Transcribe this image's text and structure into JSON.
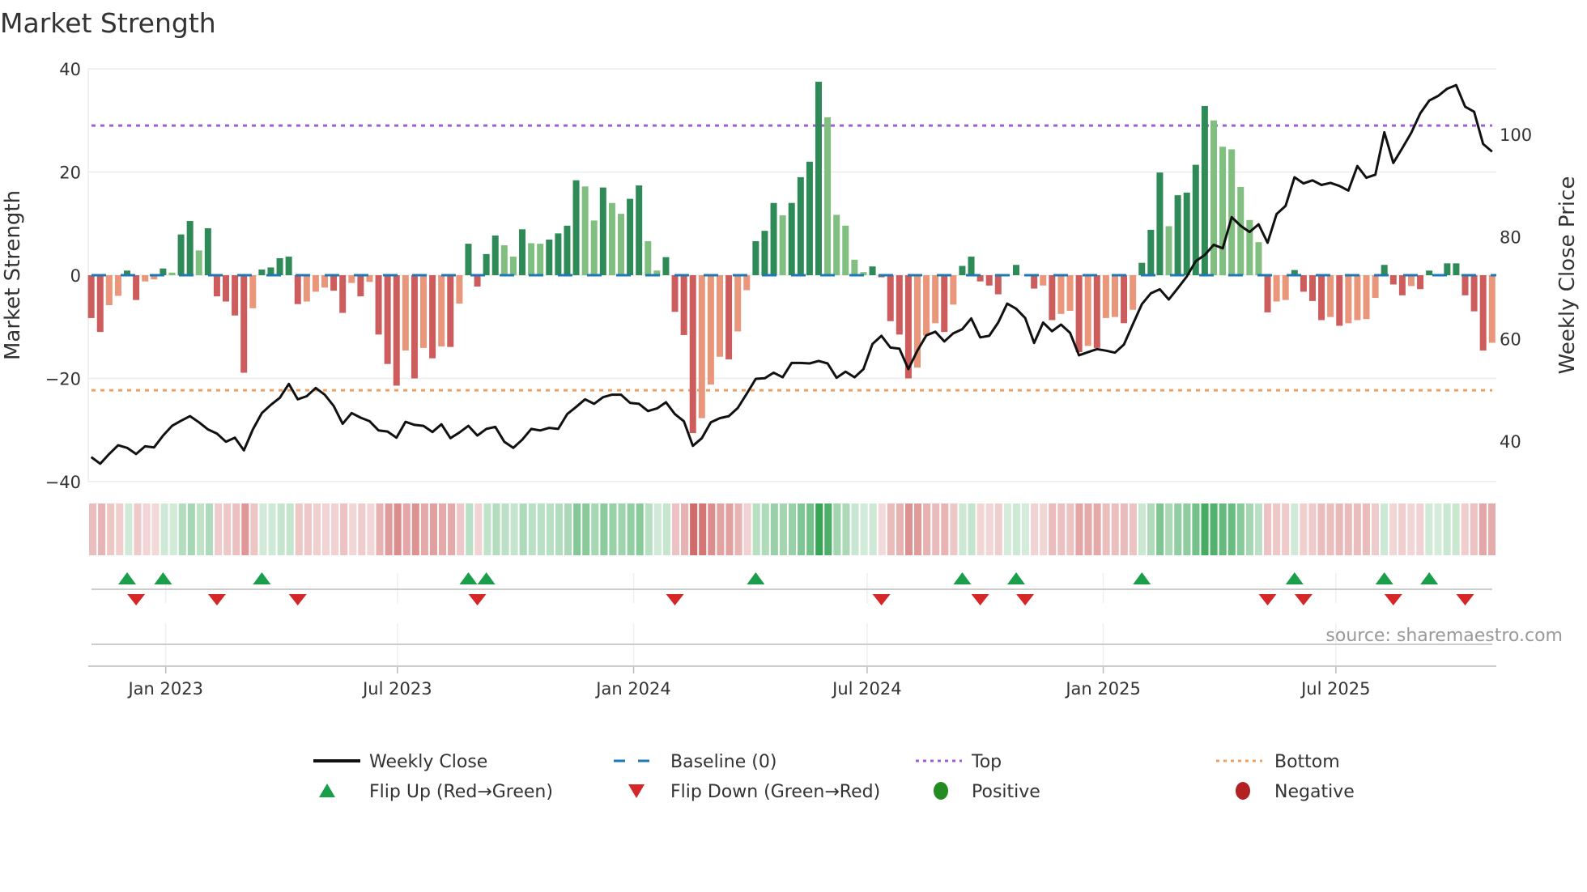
{
  "title": "Market Strength",
  "source_note": "source: sharemaestro.com",
  "colors": {
    "strong_green": "#2e8b57",
    "weak_green": "#80bf80",
    "strong_red": "#cd5c5c",
    "weak_red": "#e9967a",
    "baseline": "#1f77b4",
    "top": "#9c5fd6",
    "bottom": "#f0a060",
    "price": "#111111",
    "flip_up": "#1a9e4a",
    "flip_down": "#d62728",
    "positive": "#228b22",
    "negative": "#b22222",
    "strip_green": "#2ca04c",
    "strip_red": "#c84f4f"
  },
  "legend": {
    "weekly_close": "Weekly Close",
    "baseline": "Baseline (0)",
    "top": "Top",
    "bottom": "Bottom",
    "flip_up": "Flip Up (Red→Green)",
    "flip_down": "Flip Down (Green→Red)",
    "positive": "Positive",
    "negative": "Negative"
  },
  "chart_data": {
    "type": "bar",
    "title": "Market Strength",
    "ylabel": "Market Strength",
    "y2label": "Weekly Close Price",
    "xlabel": "",
    "ylim": [
      -40,
      40
    ],
    "y2lim": [
      32.1,
      112.8
    ],
    "x_range": [
      -0.33,
      156.47
    ],
    "grid": true,
    "legend_position": "bottom",
    "y_ticks": [
      {
        "v": 40,
        "label": "40"
      },
      {
        "v": 20,
        "label": "20"
      },
      {
        "v": 0,
        "label": "0"
      },
      {
        "v": -20,
        "label": "−20"
      },
      {
        "v": -40,
        "label": "−40"
      }
    ],
    "y2_ticks": [
      {
        "v": 100,
        "label": "100"
      },
      {
        "v": 80,
        "label": "80"
      },
      {
        "v": 60,
        "label": "60"
      },
      {
        "v": 40,
        "label": "40"
      }
    ],
    "x_ticks": [
      {
        "week": 8.3,
        "label": "Jan 2023"
      },
      {
        "week": 34.1,
        "label": "Jul 2023"
      },
      {
        "week": 60.4,
        "label": "Jan 2024"
      },
      {
        "week": 86.4,
        "label": "Jul 2024"
      },
      {
        "week": 112.7,
        "label": "Jan 2025"
      },
      {
        "week": 138.6,
        "label": "Jul 2025"
      }
    ],
    "top_level": 29.0,
    "bottom_level": -22.3,
    "baseline_level": 0,
    "strength": [
      -8.3,
      -11,
      -5.8,
      -4,
      0.9,
      -4.8,
      -1.2,
      -0.8,
      1.3,
      0.5,
      7.9,
      10.5,
      4.8,
      9.1,
      -4.1,
      -5.1,
      -7.8,
      -18.9,
      -6.4,
      1.1,
      1.5,
      3.3,
      3.6,
      -5.6,
      -5.1,
      -3.2,
      -2.4,
      -3,
      -7.3,
      -1.5,
      -4.1,
      -1.3,
      -11.5,
      -17.2,
      -21.4,
      -14.6,
      -20,
      -14.1,
      -16.1,
      -13.8,
      -13.9,
      -5.5,
      6.1,
      -2.2,
      4.1,
      7.7,
      5.8,
      3.6,
      8.9,
      6.2,
      6.1,
      6.9,
      8.1,
      9.6,
      18.4,
      17.2,
      10.6,
      17,
      14,
      11.9,
      14.8,
      17.4,
      6.6,
      0.9,
      3.5,
      -7.1,
      -11.6,
      -30.6,
      -27.7,
      -21.2,
      -15.8,
      -16.3,
      -10.9,
      -2.9,
      6.6,
      8.6,
      14,
      11.6,
      14,
      19,
      22,
      37.5,
      30.6,
      11.7,
      9.6,
      3,
      0.6,
      1.7,
      -0.4,
      -8.9,
      -11.5,
      -20,
      -17.9,
      -11.7,
      -9.3,
      -11,
      -5.7,
      1.8,
      3.6,
      -1.2,
      -2,
      -3.7,
      0,
      2,
      0,
      -2.6,
      -2,
      -8.7,
      -7.5,
      -6.9,
      -14.9,
      -13.7,
      -14.1,
      -8.3,
      -8.1,
      -9.3,
      -6.7,
      2.4,
      8.8,
      19.9,
      9.5,
      15.5,
      16,
      21.4,
      32.8,
      30,
      24.9,
      24.4,
      17.1,
      10.7,
      6.4,
      -7.2,
      -5.1,
      -4.8,
      1,
      -3.2,
      -5,
      -8.7,
      -8.1,
      -9.8,
      -9.3,
      -8.7,
      -8.5,
      -4.4,
      2,
      -1.8,
      -3.9,
      -2.1,
      -2.7,
      0.9,
      0,
      2.3,
      2.3,
      -3.9,
      -7,
      -14.6,
      -13.1
    ],
    "weekly_close": [
      36.9,
      35.6,
      37.5,
      39.2,
      38.7,
      37.5,
      39.0,
      38.8,
      41.1,
      43.0,
      44.0,
      44.9,
      43.7,
      42.3,
      41.5,
      39.9,
      40.7,
      38.2,
      42.3,
      45.5,
      47.1,
      48.5,
      51.2,
      48.2,
      48.8,
      50.4,
      49.1,
      46.9,
      43.4,
      45.5,
      44.6,
      43.9,
      42.1,
      41.9,
      40.7,
      43.8,
      43.2,
      43.0,
      41.8,
      43.3,
      40.6,
      41.7,
      43.0,
      41.1,
      42.4,
      42.8,
      39.9,
      38.7,
      40.3,
      42.4,
      42.1,
      42.6,
      42.4,
      45.3,
      46.7,
      48.2,
      47.3,
      48.6,
      49.1,
      49.1,
      47.5,
      47.3,
      45.9,
      46.4,
      47.6,
      45.3,
      43.9,
      39.1,
      40.6,
      43.7,
      44.5,
      44.9,
      46.5,
      49.3,
      52.2,
      52.3,
      53.4,
      52.5,
      55.3,
      55.3,
      55.2,
      55.7,
      55.2,
      52.4,
      53.6,
      52.5,
      54.1,
      59.0,
      60.6,
      58.3,
      58.1,
      54.1,
      57.7,
      60.7,
      61.4,
      59.5,
      61.1,
      61.9,
      64.0,
      60.3,
      60.6,
      63.2,
      66.9,
      65.9,
      64.1,
      59.2,
      63.2,
      61.5,
      62.8,
      61.2,
      56.8,
      57.4,
      58.0,
      57.7,
      57.3,
      58.9,
      62.9,
      66.8,
      68.9,
      69.7,
      67.7,
      69.9,
      72.2,
      75.2,
      76.4,
      78.4,
      77.7,
      83.8,
      82.1,
      80.9,
      82.4,
      78.8,
      84.4,
      86.0,
      91.6,
      90.4,
      91.0,
      90.1,
      90.5,
      89.9,
      89.0,
      93.8,
      91.5,
      92.1,
      100.4,
      94.4,
      97.3,
      100.3,
      104.1,
      106.6,
      107.5,
      108.9,
      109.6,
      105.4,
      104.4,
      98.1,
      96.6
    ],
    "flip_up_weeks": [
      4,
      8,
      19,
      42,
      44,
      74,
      97,
      103,
      117,
      134,
      144,
      149
    ],
    "flip_down_weeks": [
      5,
      14,
      23,
      43,
      65,
      88,
      99,
      104,
      131,
      135,
      145,
      153
    ]
  }
}
